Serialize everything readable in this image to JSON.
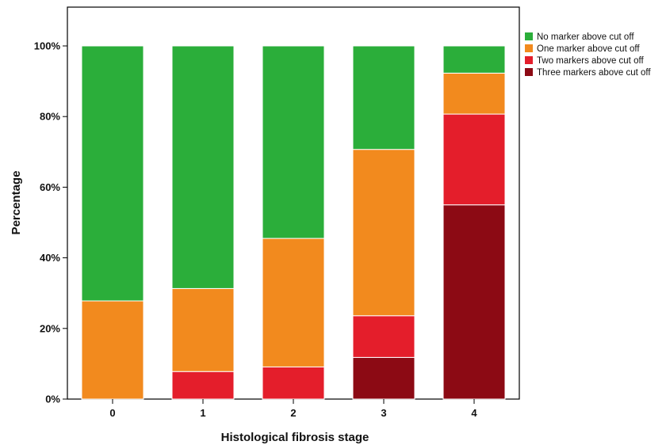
{
  "chart_data": {
    "type": "bar",
    "stacked": true,
    "categories": [
      "0",
      "1",
      "2",
      "3",
      "4"
    ],
    "xlabel": "Histological fibrosis stage",
    "ylabel": "Percentage",
    "ylim": [
      0,
      100
    ],
    "yticks": [
      0,
      20,
      40,
      60,
      80,
      100
    ],
    "ytick_labels": [
      "0%",
      "20%",
      "40%",
      "60%",
      "80%",
      "100%"
    ],
    "legend_position": "top-right",
    "series": [
      {
        "name": "Three markers above cut off",
        "color": "#8c0a14",
        "values": [
          0,
          0,
          0,
          11.8,
          55.0
        ]
      },
      {
        "name": "Two markers above cut off",
        "color": "#e41e2b",
        "values": [
          0,
          7.8,
          9.1,
          11.8,
          25.7
        ]
      },
      {
        "name": "One marker above cut off",
        "color": "#f28a1e",
        "values": [
          27.8,
          23.5,
          36.4,
          47.1,
          11.6
        ]
      },
      {
        "name": "No marker above cut off",
        "color": "#2bae3a",
        "values": [
          72.2,
          68.7,
          54.5,
          29.3,
          7.7
        ]
      }
    ],
    "legend_order": [
      "No marker above cut off",
      "One marker above cut off",
      "Two markers above cut off",
      "Three markers above cut off"
    ]
  }
}
